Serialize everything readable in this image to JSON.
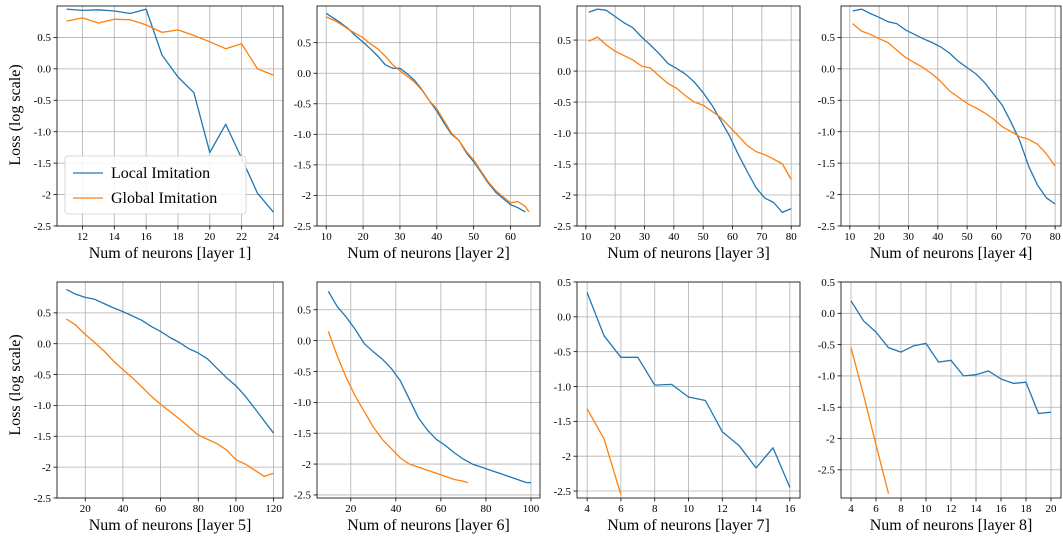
{
  "figure": {
    "ylabel": "Loss (log scale)"
  },
  "colors": {
    "local": "#1f77b4",
    "global": "#ff7f0e",
    "grid": "#b0b0b0"
  },
  "chart_data": [
    {
      "type": "line",
      "xlabel": "Num of neurons [layer 1]",
      "ylabel": "Loss (log scale)",
      "xlim": [
        10.4,
        24.6
      ],
      "ylim": [
        -2.5,
        1.0
      ],
      "xticks": [
        12,
        14,
        16,
        18,
        20,
        22,
        24
      ],
      "yticks": [
        -2.5,
        -2.0,
        -1.5,
        -1.0,
        -0.5,
        0.0,
        0.5
      ],
      "legend": "lower-left",
      "series": [
        {
          "name": "Local Imitation",
          "color": "#1f77b4",
          "x": [
            11,
            12,
            13,
            14,
            15,
            16,
            17,
            18,
            19,
            20,
            21,
            22,
            23,
            24
          ],
          "y": [
            0.95,
            0.93,
            0.94,
            0.92,
            0.88,
            0.95,
            0.22,
            -0.13,
            -0.38,
            -1.33,
            -0.88,
            -1.42,
            -1.98,
            -2.28
          ]
        },
        {
          "name": "Global Imitation",
          "color": "#ff7f0e",
          "x": [
            11,
            12,
            13,
            14,
            15,
            16,
            17,
            18,
            19,
            20,
            21,
            22,
            23,
            24
          ],
          "y": [
            0.76,
            0.81,
            0.73,
            0.79,
            0.78,
            0.7,
            0.58,
            0.62,
            0.53,
            0.43,
            0.32,
            0.4,
            0.0,
            -0.1
          ]
        }
      ]
    },
    {
      "type": "line",
      "xlabel": "Num of neurons [layer 2]",
      "xlim": [
        7.5,
        68
      ],
      "ylim": [
        -2.5,
        1.1
      ],
      "xticks": [
        10,
        20,
        30,
        40,
        50,
        60
      ],
      "yticks": [
        -2.5,
        -2.0,
        -1.5,
        -1.0,
        -0.5,
        0.0,
        0.5
      ],
      "series": [
        {
          "name": "Local Imitation",
          "color": "#1f77b4",
          "x": [
            10,
            12,
            14,
            16,
            18,
            20,
            22,
            24,
            26,
            28,
            30,
            32,
            34,
            36,
            38,
            40,
            42,
            44,
            46,
            48,
            50,
            52,
            54,
            56,
            58,
            60,
            62,
            64
          ],
          "y": [
            0.98,
            0.9,
            0.82,
            0.73,
            0.61,
            0.51,
            0.4,
            0.28,
            0.14,
            0.08,
            0.08,
            -0.01,
            -0.12,
            -0.27,
            -0.45,
            -0.62,
            -0.82,
            -1.0,
            -1.1,
            -1.3,
            -1.45,
            -1.62,
            -1.8,
            -1.95,
            -2.05,
            -2.15,
            -2.2,
            -2.27
          ]
        },
        {
          "name": "Global Imitation",
          "color": "#ff7f0e",
          "x": [
            10,
            12,
            14,
            16,
            18,
            20,
            22,
            24,
            26,
            28,
            30,
            32,
            34,
            36,
            38,
            40,
            42,
            44,
            46,
            48,
            50,
            52,
            54,
            56,
            58,
            60,
            62,
            64,
            65
          ],
          "y": [
            0.92,
            0.87,
            0.8,
            0.72,
            0.65,
            0.58,
            0.48,
            0.4,
            0.28,
            0.14,
            0.04,
            -0.05,
            -0.15,
            -0.28,
            -0.45,
            -0.58,
            -0.78,
            -0.98,
            -1.1,
            -1.28,
            -1.42,
            -1.6,
            -1.78,
            -1.92,
            -2.02,
            -2.12,
            -2.1,
            -2.18,
            -2.27
          ]
        }
      ]
    },
    {
      "type": "line",
      "xlabel": "Num of neurons [layer 3]",
      "xlim": [
        7,
        83
      ],
      "ylim": [
        -2.5,
        1.05
      ],
      "xticks": [
        10,
        20,
        30,
        40,
        50,
        60,
        70,
        80
      ],
      "yticks": [
        -2.5,
        -2.0,
        -1.5,
        -1.0,
        -0.5,
        0.0,
        0.5
      ],
      "series": [
        {
          "name": "Local Imitation",
          "color": "#1f77b4",
          "x": [
            11,
            14,
            17,
            20,
            23,
            26,
            29,
            32,
            35,
            38,
            41,
            44,
            47,
            50,
            53,
            56,
            59,
            62,
            65,
            68,
            71,
            74,
            77,
            80
          ],
          "y": [
            0.95,
            1.0,
            0.98,
            0.88,
            0.78,
            0.7,
            0.55,
            0.42,
            0.28,
            0.12,
            0.04,
            -0.05,
            -0.18,
            -0.35,
            -0.55,
            -0.8,
            -1.05,
            -1.35,
            -1.62,
            -1.88,
            -2.05,
            -2.12,
            -2.28,
            -2.22
          ]
        },
        {
          "name": "Global Imitation",
          "color": "#ff7f0e",
          "x": [
            11,
            14,
            17,
            20,
            23,
            26,
            29,
            32,
            35,
            38,
            41,
            44,
            47,
            50,
            53,
            56,
            59,
            62,
            65,
            68,
            71,
            74,
            77,
            80
          ],
          "y": [
            0.48,
            0.55,
            0.42,
            0.32,
            0.25,
            0.18,
            0.08,
            0.05,
            -0.08,
            -0.2,
            -0.28,
            -0.4,
            -0.5,
            -0.55,
            -0.65,
            -0.75,
            -0.9,
            -1.05,
            -1.2,
            -1.3,
            -1.35,
            -1.42,
            -1.5,
            -1.75
          ]
        }
      ]
    },
    {
      "type": "line",
      "xlabel": "Num of neurons [layer 4]",
      "xlim": [
        7,
        82
      ],
      "ylim": [
        -2.5,
        1.0
      ],
      "xticks": [
        10,
        20,
        30,
        40,
        50,
        60,
        70,
        80
      ],
      "yticks": [
        -2.5,
        -2.0,
        -1.5,
        -1.0,
        -0.5,
        0.0,
        0.5
      ],
      "series": [
        {
          "name": "Local Imitation",
          "color": "#1f77b4",
          "x": [
            11,
            14,
            17,
            20,
            23,
            26,
            29,
            32,
            35,
            38,
            41,
            44,
            47,
            50,
            53,
            56,
            59,
            62,
            65,
            68,
            71,
            74,
            77,
            80
          ],
          "y": [
            0.92,
            0.95,
            0.88,
            0.82,
            0.75,
            0.72,
            0.62,
            0.55,
            0.48,
            0.42,
            0.35,
            0.25,
            0.12,
            0.02,
            -0.08,
            -0.22,
            -0.4,
            -0.58,
            -0.85,
            -1.15,
            -1.55,
            -1.85,
            -2.05,
            -2.15
          ]
        },
        {
          "name": "Global Imitation",
          "color": "#ff7f0e",
          "x": [
            11,
            14,
            17,
            20,
            23,
            26,
            29,
            32,
            35,
            38,
            41,
            44,
            47,
            50,
            53,
            56,
            59,
            62,
            65,
            68,
            71,
            74,
            77,
            80
          ],
          "y": [
            0.72,
            0.6,
            0.55,
            0.48,
            0.42,
            0.3,
            0.18,
            0.1,
            0.02,
            -0.08,
            -0.2,
            -0.35,
            -0.45,
            -0.55,
            -0.62,
            -0.7,
            -0.8,
            -0.92,
            -1.0,
            -1.08,
            -1.12,
            -1.2,
            -1.35,
            -1.55
          ]
        }
      ]
    },
    {
      "type": "line",
      "xlabel": "Num of neurons [layer 5]",
      "xlim": [
        5,
        125
      ],
      "ylim": [
        -2.5,
        1.0
      ],
      "xticks": [
        20,
        40,
        60,
        80,
        100,
        120
      ],
      "yticks": [
        -2.5,
        -2.0,
        -1.5,
        -1.0,
        -0.5,
        0.0,
        0.5
      ],
      "series": [
        {
          "name": "Local Imitation",
          "color": "#1f77b4",
          "x": [
            10,
            15,
            20,
            25,
            30,
            35,
            40,
            45,
            50,
            55,
            60,
            65,
            70,
            75,
            80,
            85,
            90,
            95,
            100,
            105,
            110,
            115,
            120
          ],
          "y": [
            0.88,
            0.8,
            0.75,
            0.72,
            0.65,
            0.58,
            0.52,
            0.45,
            0.38,
            0.28,
            0.2,
            0.1,
            0.02,
            -0.08,
            -0.15,
            -0.25,
            -0.4,
            -0.55,
            -0.68,
            -0.85,
            -1.05,
            -1.25,
            -1.45
          ]
        },
        {
          "name": "Global Imitation",
          "color": "#ff7f0e",
          "x": [
            10,
            15,
            20,
            25,
            30,
            35,
            40,
            45,
            50,
            55,
            60,
            65,
            70,
            75,
            80,
            85,
            90,
            95,
            100,
            105,
            110,
            115,
            120
          ],
          "y": [
            0.4,
            0.3,
            0.15,
            0.02,
            -0.12,
            -0.28,
            -0.42,
            -0.55,
            -0.7,
            -0.85,
            -0.98,
            -1.1,
            -1.22,
            -1.35,
            -1.48,
            -1.55,
            -1.62,
            -1.72,
            -1.88,
            -1.95,
            -2.05,
            -2.15,
            -2.1
          ]
        }
      ]
    },
    {
      "type": "line",
      "xlabel": "Num of neurons [layer 6]",
      "xlim": [
        5,
        104
      ],
      "ylim": [
        -2.55,
        0.95
      ],
      "xticks": [
        20,
        40,
        60,
        80,
        100
      ],
      "yticks": [
        -2.5,
        -2.0,
        -1.5,
        -1.0,
        -0.5,
        0.0,
        0.5
      ],
      "series": [
        {
          "name": "Local Imitation",
          "color": "#1f77b4",
          "x": [
            10,
            14,
            18,
            22,
            26,
            30,
            34,
            38,
            42,
            46,
            50,
            54,
            58,
            62,
            66,
            70,
            74,
            78,
            82,
            86,
            90,
            94,
            98,
            100
          ],
          "y": [
            0.8,
            0.55,
            0.38,
            0.18,
            -0.05,
            -0.18,
            -0.3,
            -0.45,
            -0.65,
            -0.95,
            -1.25,
            -1.45,
            -1.6,
            -1.7,
            -1.82,
            -1.92,
            -2.0,
            -2.05,
            -2.1,
            -2.15,
            -2.2,
            -2.25,
            -2.3,
            -2.3
          ]
        },
        {
          "name": "Global Imitation",
          "color": "#ff7f0e",
          "x": [
            10,
            14,
            18,
            22,
            26,
            30,
            34,
            38,
            42,
            46,
            50,
            54,
            58,
            62,
            66,
            70,
            72
          ],
          "y": [
            0.15,
            -0.25,
            -0.6,
            -0.9,
            -1.15,
            -1.4,
            -1.6,
            -1.75,
            -1.9,
            -2.0,
            -2.05,
            -2.1,
            -2.15,
            -2.2,
            -2.25,
            -2.28,
            -2.3
          ]
        }
      ]
    },
    {
      "type": "line",
      "xlabel": "Num of neurons [layer 7]",
      "xlim": [
        3.4,
        16.6
      ],
      "ylim": [
        -2.6,
        0.5
      ],
      "xticks": [
        4,
        6,
        8,
        10,
        12,
        14,
        16
      ],
      "yticks": [
        -2.5,
        -2.0,
        -1.5,
        -1.0,
        -0.5,
        0.0,
        0.5
      ],
      "series": [
        {
          "name": "Local Imitation",
          "color": "#1f77b4",
          "x": [
            4,
            5,
            6,
            7,
            8,
            9,
            10,
            11,
            12,
            13,
            14,
            15,
            16
          ],
          "y": [
            0.35,
            -0.27,
            -0.58,
            -0.58,
            -0.98,
            -0.97,
            -1.15,
            -1.2,
            -1.65,
            -1.85,
            -2.17,
            -1.88,
            -2.45
          ]
        },
        {
          "name": "Global Imitation",
          "color": "#ff7f0e",
          "x": [
            4,
            5,
            6
          ],
          "y": [
            -1.32,
            -1.75,
            -2.55
          ]
        }
      ]
    },
    {
      "type": "line",
      "xlabel": "Num of neurons [layer 8]",
      "xlim": [
        3.2,
        20.8
      ],
      "ylim": [
        -2.95,
        0.5
      ],
      "xticks": [
        4,
        6,
        8,
        10,
        12,
        14,
        16,
        18,
        20
      ],
      "yticks": [
        -2.5,
        -2.0,
        -1.5,
        -1.0,
        -0.5,
        0.0,
        0.5
      ],
      "series": [
        {
          "name": "Local Imitation",
          "color": "#1f77b4",
          "x": [
            4,
            5,
            6,
            7,
            8,
            9,
            10,
            11,
            12,
            13,
            14,
            15,
            16,
            17,
            18,
            19,
            20
          ],
          "y": [
            0.2,
            -0.12,
            -0.3,
            -0.55,
            -0.62,
            -0.52,
            -0.48,
            -0.78,
            -0.75,
            -1.0,
            -0.98,
            -0.92,
            -1.05,
            -1.12,
            -1.1,
            -1.6,
            -1.58
          ]
        },
        {
          "name": "Global Imitation",
          "color": "#ff7f0e",
          "x": [
            4,
            5,
            6,
            7
          ],
          "y": [
            -0.55,
            -1.3,
            -2.1,
            -2.88
          ]
        }
      ]
    }
  ]
}
